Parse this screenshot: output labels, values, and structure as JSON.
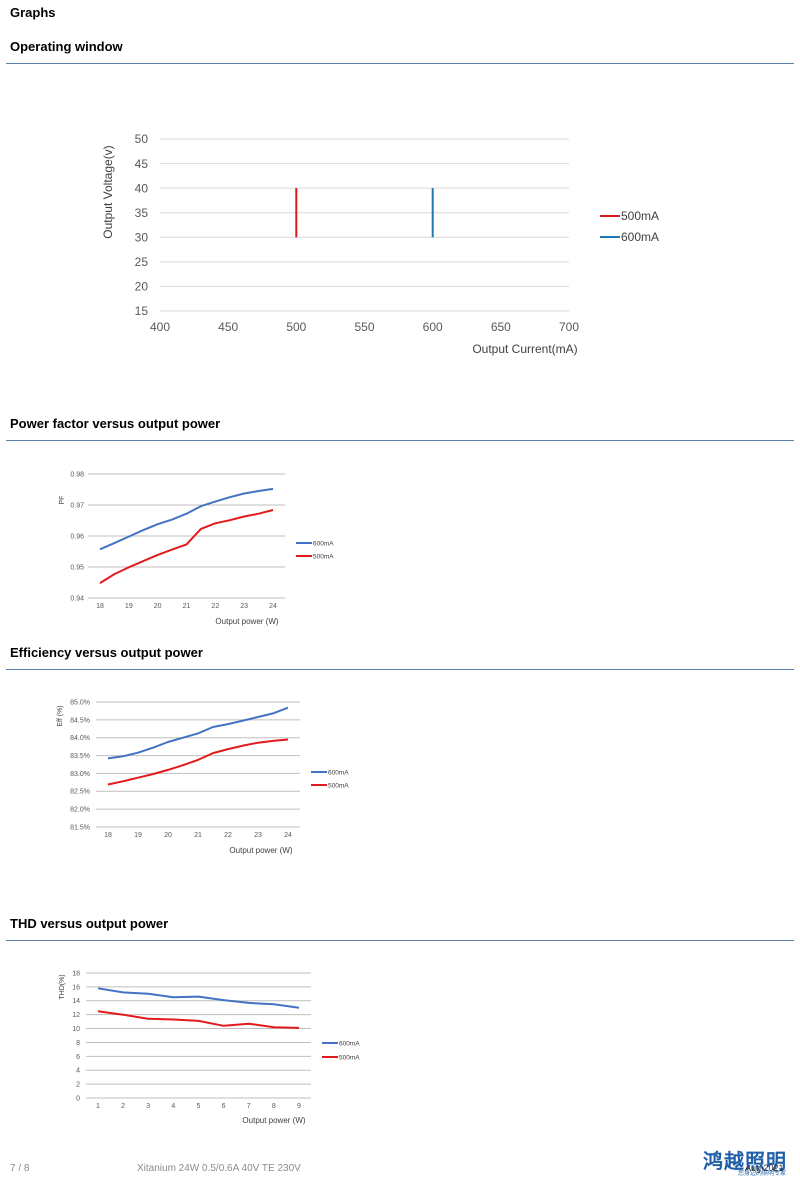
{
  "page": {
    "title": "Graphs",
    "footer_page": "7 / 8",
    "footer_doc": "Xitanium 24W 0.5/0.6A 40V TE 230V",
    "footer_date": "Aug 2021",
    "logo_text": "鸿越照明",
    "logo_sub": "您身边的照明专家"
  },
  "sections": [
    {
      "title": "Operating window"
    },
    {
      "title": "Power factor versus output power"
    },
    {
      "title": "Efficiency versus output power"
    },
    {
      "title": "THD versus output power"
    }
  ],
  "chart_data": [
    {
      "type": "line",
      "title": "",
      "xlabel": "Output Current(mA)",
      "ylabel": "Output Voltage(v)",
      "xlim": [
        400,
        700
      ],
      "ylim": [
        15,
        50
      ],
      "x_ticks": [
        "400",
        "450",
        "500",
        "550",
        "600",
        "650",
        "700"
      ],
      "y_ticks": [
        "15",
        "20",
        "25",
        "30",
        "35",
        "40",
        "45",
        "50"
      ],
      "grid": true,
      "legend_position": "right",
      "series": [
        {
          "name": "500mA",
          "color": "#d7191c",
          "x": [
            500,
            500
          ],
          "y": [
            30,
            40
          ]
        },
        {
          "name": "600mA",
          "color": "#1f77b4",
          "x": [
            600,
            600
          ],
          "y": [
            30,
            40
          ]
        }
      ]
    },
    {
      "type": "line",
      "title": "",
      "xlabel": "Output power (W)",
      "ylabel": "PF",
      "categories": [
        "18",
        "19",
        "20",
        "21",
        "22",
        "23",
        "24"
      ],
      "x": [
        18,
        18.5,
        19,
        19.5,
        20,
        20.5,
        21,
        21.5,
        22,
        22.5,
        23,
        23.5,
        24
      ],
      "ylim": [
        0.94,
        0.98
      ],
      "y_ticks": [
        "0.94",
        "0.95",
        "0.96",
        "0.97",
        "0.98"
      ],
      "grid": true,
      "legend_position": "right",
      "series": [
        {
          "name": "600mA",
          "color": "#4472c4",
          "values": [
            0.9557,
            0.9577,
            0.9598,
            0.9619,
            0.9638,
            0.9653,
            0.9672,
            0.9696,
            0.9711,
            0.9725,
            0.9737,
            0.9745,
            0.9752
          ]
        },
        {
          "name": "500mA",
          "color": "#e31a1c",
          "values": [
            0.9448,
            0.9477,
            0.9499,
            0.9519,
            0.9539,
            0.9556,
            0.9573,
            0.9623,
            0.9641,
            0.9651,
            0.9663,
            0.9672,
            0.9684
          ]
        }
      ]
    },
    {
      "type": "line",
      "title": "",
      "xlabel": "Output power (W)",
      "ylabel": "Eff (%)",
      "categories": [
        "18",
        "19",
        "20",
        "21",
        "22",
        "23",
        "24"
      ],
      "x": [
        18,
        18.5,
        19,
        19.5,
        20,
        20.5,
        21,
        21.5,
        22,
        22.5,
        23,
        23.5,
        24
      ],
      "ylim": [
        81.5,
        85.0
      ],
      "y_ticks": [
        "81.5%",
        "82.0%",
        "82.5%",
        "83.0%",
        "83.5%",
        "84.0%",
        "84.5%",
        "85.0%"
      ],
      "grid": true,
      "legend_position": "right",
      "series": [
        {
          "name": "600mA",
          "color": "#4472c4",
          "values": [
            83.42,
            83.48,
            83.58,
            83.72,
            83.88,
            84.0,
            84.12,
            84.3,
            84.38,
            84.48,
            84.58,
            84.68,
            84.84
          ]
        },
        {
          "name": "500mA",
          "color": "#e31a1c",
          "values": [
            82.69,
            82.78,
            82.88,
            82.98,
            83.1,
            83.23,
            83.38,
            83.57,
            83.68,
            83.78,
            83.86,
            83.91,
            83.95
          ]
        }
      ]
    },
    {
      "type": "line",
      "title": "",
      "xlabel": "Output power (W)",
      "ylabel": "THD(%)",
      "categories": [
        "1",
        "2",
        "3",
        "4",
        "5",
        "6",
        "7",
        "8",
        "9"
      ],
      "ylim": [
        0,
        18
      ],
      "y_ticks": [
        "0",
        "2",
        "4",
        "6",
        "8",
        "10",
        "12",
        "14",
        "16",
        "18"
      ],
      "grid": true,
      "legend_position": "right",
      "series": [
        {
          "name": "600mA",
          "color": "#4472c4",
          "values": [
            15.8,
            15.2,
            15.0,
            14.5,
            14.6,
            14.1,
            13.7,
            13.5,
            13.0
          ]
        },
        {
          "name": "500mA",
          "color": "#e31a1c",
          "values": [
            12.5,
            12.0,
            11.4,
            11.3,
            11.1,
            10.4,
            10.7,
            10.2,
            10.1
          ]
        }
      ]
    }
  ]
}
